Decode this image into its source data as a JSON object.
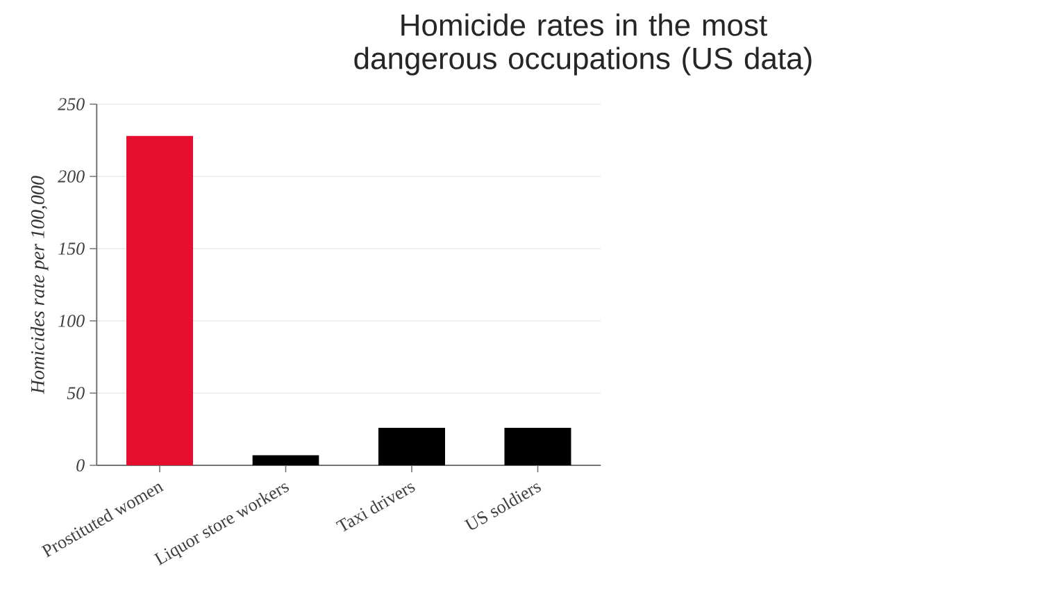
{
  "chart_data": {
    "type": "bar",
    "title": "Homicide rates in the most dangerous occupations (US data)",
    "ylabel": "Homicides rate per 100,000",
    "categories": [
      "Prostituted women",
      "Liquor store workers",
      "Taxi drivers",
      "US soldiers"
    ],
    "values": [
      228,
      7,
      26,
      26
    ],
    "colors": [
      "#e60e2e",
      "#000000",
      "#000000",
      "#000000"
    ],
    "ylim": [
      0,
      250
    ],
    "yticks": [
      0,
      50,
      100,
      150,
      200,
      250
    ],
    "grid": "y"
  }
}
